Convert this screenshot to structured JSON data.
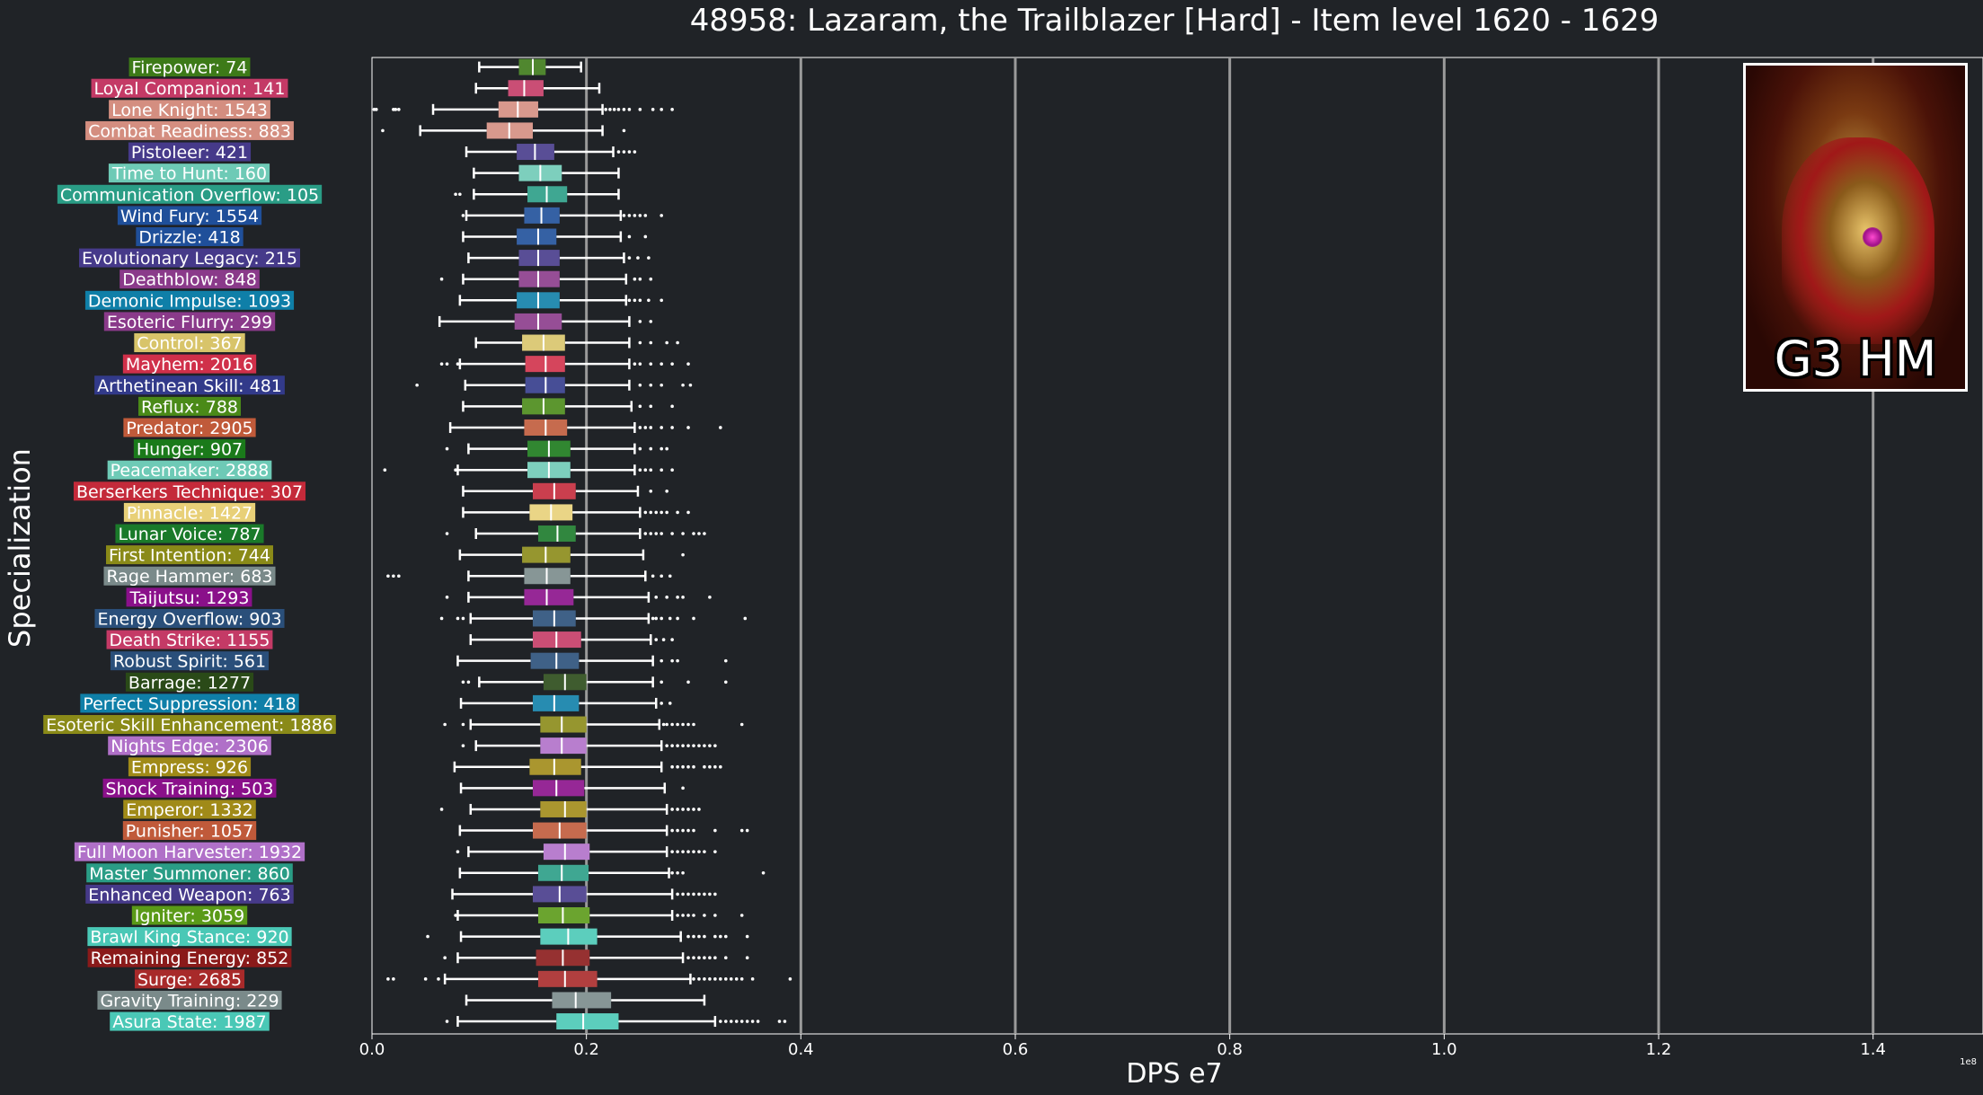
{
  "chart_data": {
    "type": "box",
    "orientation": "horizontal",
    "title": "48958: Lazaram, the Trailblazer [Hard] - Item level 1620 - 1629",
    "xlabel": "DPS e7",
    "ylabel": "Specialization",
    "offset_text": "1e8",
    "xlim": [
      0,
      1.5
    ],
    "xticks": [
      "0.0",
      "0.2",
      "0.4",
      "0.6",
      "0.8",
      "1.0",
      "1.2",
      "1.4"
    ],
    "xtick_values": [
      0,
      0.2,
      0.4,
      0.6,
      0.8,
      1.0,
      1.2,
      1.4
    ],
    "grid": "vertical",
    "categories": [
      {
        "label": "Firepower: 74",
        "color": "#3d7a18",
        "whislo": 0.1,
        "q1": 0.137,
        "med": 0.15,
        "q3": 0.162,
        "whishi": 0.195,
        "outliers": []
      },
      {
        "label": "Loyal Companion: 141",
        "color": "#c43a66",
        "whislo": 0.097,
        "q1": 0.127,
        "med": 0.142,
        "q3": 0.16,
        "whishi": 0.212,
        "outliers": []
      },
      {
        "label": "Lone Knight: 1543",
        "color": "#d48e80",
        "whislo": 0.057,
        "q1": 0.118,
        "med": 0.136,
        "q3": 0.155,
        "whishi": 0.215,
        "outliers": [
          0.002,
          0.004,
          0.02,
          0.022,
          0.025,
          0.218,
          0.222,
          0.226,
          0.23,
          0.235,
          0.24,
          0.25,
          0.262,
          0.27,
          0.28
        ]
      },
      {
        "label": "Combat Readiness: 883",
        "color": "#d48e80",
        "whislo": 0.045,
        "q1": 0.107,
        "med": 0.128,
        "q3": 0.15,
        "whishi": 0.215,
        "outliers": [
          0.01,
          0.235
        ]
      },
      {
        "label": "Pistoleer: 421",
        "color": "#463a8a",
        "whislo": 0.088,
        "q1": 0.135,
        "med": 0.152,
        "q3": 0.17,
        "whishi": 0.225,
        "outliers": [
          0.23,
          0.235,
          0.24,
          0.245
        ]
      },
      {
        "label": "Time to Hunt: 160",
        "color": "#6ecab6",
        "whislo": 0.095,
        "q1": 0.137,
        "med": 0.157,
        "q3": 0.177,
        "whishi": 0.23,
        "outliers": []
      },
      {
        "label": "Communication Overflow: 105",
        "color": "#2a9d86",
        "whislo": 0.095,
        "q1": 0.145,
        "med": 0.163,
        "q3": 0.182,
        "whishi": 0.23,
        "outliers": [
          0.078,
          0.082
        ]
      },
      {
        "label": "Wind Fury: 1554",
        "color": "#1f4f9a",
        "whislo": 0.088,
        "q1": 0.142,
        "med": 0.158,
        "q3": 0.175,
        "whishi": 0.232,
        "outliers": [
          0.085,
          0.235,
          0.24,
          0.245,
          0.25,
          0.255,
          0.27
        ]
      },
      {
        "label": "Drizzle: 418",
        "color": "#1f4f9a",
        "whislo": 0.085,
        "q1": 0.135,
        "med": 0.155,
        "q3": 0.172,
        "whishi": 0.232,
        "outliers": [
          0.24,
          0.255
        ]
      },
      {
        "label": "Evolutionary Legacy: 215",
        "color": "#463a8a",
        "whislo": 0.09,
        "q1": 0.137,
        "med": 0.155,
        "q3": 0.175,
        "whishi": 0.235,
        "outliers": [
          0.24,
          0.248,
          0.258
        ]
      },
      {
        "label": "Deathblow: 848",
        "color": "#8a3a8a",
        "whislo": 0.085,
        "q1": 0.137,
        "med": 0.155,
        "q3": 0.175,
        "whishi": 0.237,
        "outliers": [
          0.065,
          0.245,
          0.25,
          0.26
        ]
      },
      {
        "label": "Demonic Impulse: 1093",
        "color": "#0f7fa8",
        "whislo": 0.082,
        "q1": 0.135,
        "med": 0.155,
        "q3": 0.175,
        "whishi": 0.237,
        "outliers": [
          0.24,
          0.245,
          0.25,
          0.258,
          0.27
        ]
      },
      {
        "label": "Esoteric Flurry: 299",
        "color": "#8a3a8a",
        "whislo": 0.063,
        "q1": 0.133,
        "med": 0.155,
        "q3": 0.177,
        "whishi": 0.24,
        "outliers": [
          0.25,
          0.26
        ]
      },
      {
        "label": "Control: 367",
        "color": "#d8c46a",
        "whislo": 0.097,
        "q1": 0.14,
        "med": 0.16,
        "q3": 0.18,
        "whishi": 0.24,
        "outliers": [
          0.25,
          0.26,
          0.275,
          0.285
        ]
      },
      {
        "label": "Mayhem: 2016",
        "color": "#d0304a",
        "whislo": 0.082,
        "q1": 0.143,
        "med": 0.162,
        "q3": 0.18,
        "whishi": 0.24,
        "outliers": [
          0.065,
          0.07,
          0.08,
          0.245,
          0.25,
          0.26,
          0.27,
          0.28,
          0.295
        ]
      },
      {
        "label": "Arthetinean Skill: 481",
        "color": "#323a8a",
        "whislo": 0.087,
        "q1": 0.143,
        "med": 0.162,
        "q3": 0.18,
        "whishi": 0.24,
        "outliers": [
          0.042,
          0.25,
          0.26,
          0.27,
          0.29,
          0.297
        ]
      },
      {
        "label": "Reflux: 788",
        "color": "#4a8a18",
        "whislo": 0.085,
        "q1": 0.14,
        "med": 0.16,
        "q3": 0.18,
        "whishi": 0.242,
        "outliers": [
          0.25,
          0.26,
          0.28
        ]
      },
      {
        "label": "Predator: 2905",
        "color": "#c05a3a",
        "whislo": 0.073,
        "q1": 0.142,
        "med": 0.162,
        "q3": 0.182,
        "whishi": 0.245,
        "outliers": [
          0.25,
          0.255,
          0.26,
          0.27,
          0.28,
          0.295,
          0.325
        ]
      },
      {
        "label": "Hunger: 907",
        "color": "#1a7a1a",
        "whislo": 0.09,
        "q1": 0.145,
        "med": 0.165,
        "q3": 0.185,
        "whishi": 0.245,
        "outliers": [
          0.07,
          0.25,
          0.26,
          0.27,
          0.275
        ]
      },
      {
        "label": "Peacemaker: 2888",
        "color": "#6ecab6",
        "whislo": 0.08,
        "q1": 0.145,
        "med": 0.165,
        "q3": 0.185,
        "whishi": 0.245,
        "outliers": [
          0.012,
          0.078,
          0.25,
          0.255,
          0.26,
          0.27,
          0.28
        ]
      },
      {
        "label": "Berserkers Technique: 307",
        "color": "#c42a3a",
        "whislo": 0.085,
        "q1": 0.15,
        "med": 0.17,
        "q3": 0.19,
        "whishi": 0.248,
        "outliers": [
          0.26,
          0.275
        ]
      },
      {
        "label": "Pinnacle: 1427",
        "color": "#e8d078",
        "whislo": 0.085,
        "q1": 0.147,
        "med": 0.167,
        "q3": 0.187,
        "whishi": 0.25,
        "outliers": [
          0.255,
          0.26,
          0.265,
          0.27,
          0.275,
          0.285,
          0.295
        ]
      },
      {
        "label": "Lunar Voice: 787",
        "color": "#1a7a2a",
        "whislo": 0.097,
        "q1": 0.155,
        "med": 0.173,
        "q3": 0.19,
        "whishi": 0.25,
        "outliers": [
          0.07,
          0.255,
          0.26,
          0.265,
          0.27,
          0.28,
          0.29,
          0.3,
          0.305,
          0.31
        ]
      },
      {
        "label": "First Intention: 744",
        "color": "#8a8a18",
        "whislo": 0.082,
        "q1": 0.14,
        "med": 0.162,
        "q3": 0.185,
        "whishi": 0.253,
        "outliers": [
          0.29
        ]
      },
      {
        "label": "Rage Hammer: 683",
        "color": "#7a8a8a",
        "whislo": 0.09,
        "q1": 0.142,
        "med": 0.163,
        "q3": 0.185,
        "whishi": 0.255,
        "outliers": [
          0.015,
          0.02,
          0.025,
          0.262,
          0.27,
          0.278
        ]
      },
      {
        "label": "Taijutsu: 1293",
        "color": "#8a108a",
        "whislo": 0.09,
        "q1": 0.142,
        "med": 0.163,
        "q3": 0.188,
        "whishi": 0.258,
        "outliers": [
          0.07,
          0.265,
          0.275,
          0.285,
          0.29,
          0.315
        ]
      },
      {
        "label": "Energy Overflow: 903",
        "color": "#2a4f7a",
        "whislo": 0.092,
        "q1": 0.15,
        "med": 0.17,
        "q3": 0.19,
        "whishi": 0.258,
        "outliers": [
          0.065,
          0.08,
          0.085,
          0.262,
          0.265,
          0.27,
          0.278,
          0.285,
          0.3,
          0.348
        ]
      },
      {
        "label": "Death Strike: 1155",
        "color": "#c43a66",
        "whislo": 0.092,
        "q1": 0.15,
        "med": 0.172,
        "q3": 0.195,
        "whishi": 0.26,
        "outliers": [
          0.265,
          0.272,
          0.28
        ]
      },
      {
        "label": "Robust Spirit: 561",
        "color": "#2a4f7a",
        "whislo": 0.08,
        "q1": 0.148,
        "med": 0.172,
        "q3": 0.193,
        "whishi": 0.262,
        "outliers": [
          0.27,
          0.28,
          0.285,
          0.33
        ]
      },
      {
        "label": "Barrage: 1277",
        "color": "#2a4a18",
        "whislo": 0.1,
        "q1": 0.16,
        "med": 0.18,
        "q3": 0.2,
        "whishi": 0.262,
        "outliers": [
          0.085,
          0.09,
          0.27,
          0.295,
          0.33
        ]
      },
      {
        "label": "Perfect Suppression: 418",
        "color": "#0f7fa8",
        "whislo": 0.083,
        "q1": 0.15,
        "med": 0.17,
        "q3": 0.193,
        "whishi": 0.265,
        "outliers": [
          0.27,
          0.278
        ]
      },
      {
        "label": "Esoteric Skill Enhancement: 1886",
        "color": "#8a8a18",
        "whislo": 0.092,
        "q1": 0.157,
        "med": 0.177,
        "q3": 0.2,
        "whishi": 0.268,
        "outliers": [
          0.068,
          0.085,
          0.272,
          0.275,
          0.28,
          0.285,
          0.29,
          0.295,
          0.3,
          0.345
        ]
      },
      {
        "label": "Nights Edge: 2306",
        "color": "#b070c8",
        "whislo": 0.097,
        "q1": 0.157,
        "med": 0.177,
        "q3": 0.2,
        "whishi": 0.27,
        "outliers": [
          0.085,
          0.275,
          0.28,
          0.285,
          0.29,
          0.295,
          0.3,
          0.305,
          0.31,
          0.315,
          0.32
        ]
      },
      {
        "label": "Empress: 926",
        "color": "#a08a18",
        "whislo": 0.077,
        "q1": 0.147,
        "med": 0.17,
        "q3": 0.195,
        "whishi": 0.27,
        "outliers": [
          0.28,
          0.285,
          0.29,
          0.295,
          0.3,
          0.31,
          0.315,
          0.32,
          0.325
        ]
      },
      {
        "label": "Shock Training: 503",
        "color": "#8a108a",
        "whislo": 0.083,
        "q1": 0.15,
        "med": 0.172,
        "q3": 0.198,
        "whishi": 0.273,
        "outliers": [
          0.29
        ]
      },
      {
        "label": "Emperor: 1332",
        "color": "#a08a18",
        "whislo": 0.092,
        "q1": 0.157,
        "med": 0.18,
        "q3": 0.2,
        "whishi": 0.275,
        "outliers": [
          0.065,
          0.28,
          0.285,
          0.29,
          0.295,
          0.3,
          0.305
        ]
      },
      {
        "label": "Punisher: 1057",
        "color": "#c05a3a",
        "whislo": 0.082,
        "q1": 0.15,
        "med": 0.175,
        "q3": 0.2,
        "whishi": 0.275,
        "outliers": [
          0.28,
          0.285,
          0.29,
          0.295,
          0.3,
          0.32,
          0.345,
          0.35
        ]
      },
      {
        "label": "Full Moon Harvester: 1932",
        "color": "#b070c8",
        "whislo": 0.09,
        "q1": 0.16,
        "med": 0.18,
        "q3": 0.203,
        "whishi": 0.275,
        "outliers": [
          0.08,
          0.28,
          0.285,
          0.29,
          0.295,
          0.3,
          0.305,
          0.31,
          0.32
        ]
      },
      {
        "label": "Master Summoner: 860",
        "color": "#2a9d86",
        "whislo": 0.082,
        "q1": 0.155,
        "med": 0.177,
        "q3": 0.202,
        "whishi": 0.277,
        "outliers": [
          0.28,
          0.285,
          0.29,
          0.365
        ]
      },
      {
        "label": "Enhanced Weapon: 763",
        "color": "#463a8a",
        "whislo": 0.075,
        "q1": 0.15,
        "med": 0.175,
        "q3": 0.2,
        "whishi": 0.28,
        "outliers": [
          0.285,
          0.29,
          0.295,
          0.3,
          0.305,
          0.31,
          0.315,
          0.32
        ]
      },
      {
        "label": "Igniter: 3059",
        "color": "#5a9a18",
        "whislo": 0.08,
        "q1": 0.155,
        "med": 0.178,
        "q3": 0.203,
        "whishi": 0.28,
        "outliers": [
          0.078,
          0.285,
          0.29,
          0.295,
          0.3,
          0.31,
          0.32,
          0.345
        ]
      },
      {
        "label": "Brawl King Stance: 920",
        "color": "#4ac8b6",
        "whislo": 0.083,
        "q1": 0.157,
        "med": 0.183,
        "q3": 0.21,
        "whishi": 0.288,
        "outliers": [
          0.052,
          0.295,
          0.3,
          0.305,
          0.31,
          0.32,
          0.325,
          0.33,
          0.35
        ]
      },
      {
        "label": "Remaining Energy: 852",
        "color": "#8a1a1a",
        "whislo": 0.08,
        "q1": 0.153,
        "med": 0.178,
        "q3": 0.203,
        "whishi": 0.29,
        "outliers": [
          0.068,
          0.295,
          0.3,
          0.305,
          0.31,
          0.315,
          0.32,
          0.33,
          0.35
        ]
      },
      {
        "label": "Surge: 2685",
        "color": "#a82a2a",
        "whislo": 0.068,
        "q1": 0.155,
        "med": 0.18,
        "q3": 0.21,
        "whishi": 0.297,
        "outliers": [
          0.015,
          0.02,
          0.05,
          0.062,
          0.3,
          0.305,
          0.31,
          0.315,
          0.32,
          0.325,
          0.33,
          0.335,
          0.34,
          0.345,
          0.355,
          0.39
        ]
      },
      {
        "label": "Gravity Training: 229",
        "color": "#7a8a8a",
        "whislo": 0.088,
        "q1": 0.168,
        "med": 0.19,
        "q3": 0.223,
        "whishi": 0.31,
        "outliers": []
      },
      {
        "label": "Asura State: 1987",
        "color": "#4ac8b6",
        "whislo": 0.08,
        "q1": 0.172,
        "med": 0.197,
        "q3": 0.23,
        "whishi": 0.32,
        "outliers": [
          0.07,
          0.325,
          0.33,
          0.335,
          0.34,
          0.345,
          0.35,
          0.355,
          0.36,
          0.38,
          0.385
        ]
      }
    ]
  },
  "thumbnail": {
    "caption": "G3 HM",
    "icon": "boss-portrait-image"
  }
}
